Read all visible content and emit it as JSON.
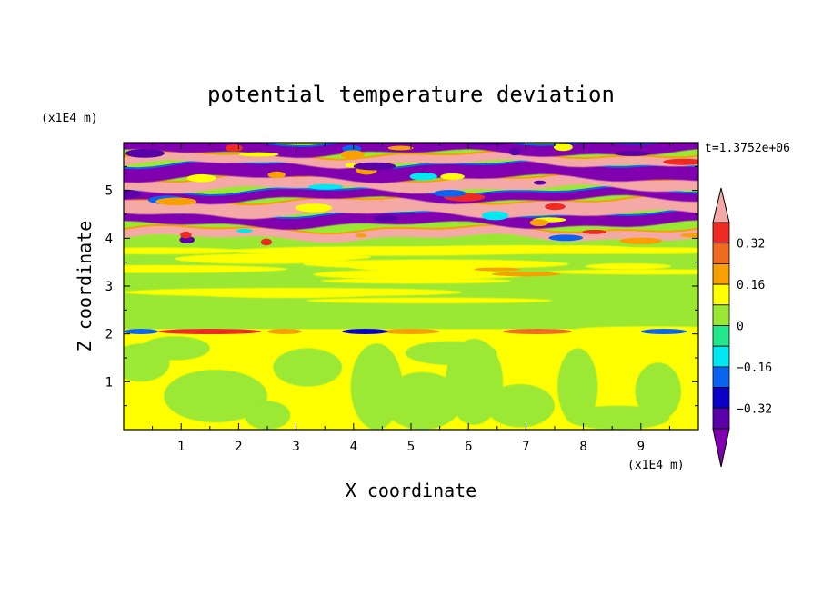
{
  "chart_data": {
    "type": "heatmap",
    "title": "potential temperature deviation",
    "xlabel": "X coordinate",
    "ylabel": "Z coordinate",
    "x_unit": "(x1E4 m)",
    "y_unit": "(x1E4 m)",
    "time_label": "t=1.3752e+06",
    "xlim": [
      0,
      10
    ],
    "ylim": [
      0,
      6
    ],
    "x_ticks": [
      1,
      2,
      3,
      4,
      5,
      6,
      7,
      8,
      9
    ],
    "y_ticks": [
      1,
      2,
      3,
      4,
      5
    ],
    "colorbar": {
      "levels": [
        -0.4,
        -0.32,
        -0.24,
        -0.16,
        -0.08,
        0,
        0.08,
        0.16,
        0.24,
        0.32,
        0.4
      ],
      "tick_labels": [
        "0.32",
        "0.16",
        "0",
        "−0.16",
        "−0.32"
      ],
      "tick_values": [
        0.32,
        0.16,
        0,
        -0.16,
        -0.32
      ],
      "colors_top_to_bottom": [
        "#f4a9a6",
        "#ee2a22",
        "#f06a20",
        "#f8a000",
        "#ffff00",
        "#9be834",
        "#22e88c",
        "#00e8f0",
        "#0a64f2",
        "#0a00c8",
        "#5a00a8",
        "#8000b0"
      ],
      "extend": "both"
    },
    "regions": [
      {
        "z_range": [
          0,
          2.0
        ],
        "pattern": "large blobs near 0",
        "dominant_values": [
          0.08,
          0
        ]
      },
      {
        "z_range": [
          2.0,
          2.1
        ],
        "pattern": "thin warm/cold band",
        "dominant_values": [
          0.32,
          -0.32
        ]
      },
      {
        "z_range": [
          2.1,
          3.9
        ],
        "pattern": "smooth near-zero layer",
        "dominant_values": [
          0,
          0.08
        ]
      },
      {
        "z_range": [
          3.9,
          6.0
        ],
        "pattern": "strong alternating horizontal bands",
        "dominant_values": [
          0.4,
          -0.4
        ]
      }
    ]
  }
}
